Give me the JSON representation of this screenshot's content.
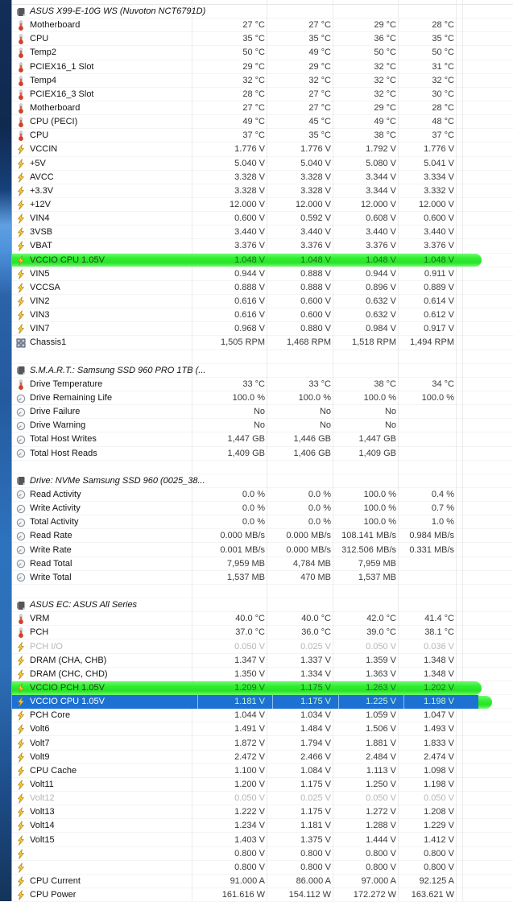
{
  "colors": {
    "highlight_green": "#2FEE2F",
    "selection_blue": "#1D71D3",
    "voltage_icon_yellow": "#FFD23E",
    "thermometer_icon_red": "#E03C22",
    "dim_text_gray": "#B6B6B6"
  },
  "sections": [
    {
      "header": "ASUS X99-E-10G WS (Nuvoton NCT6791D)",
      "header_icon": "chip-icon",
      "rows": [
        {
          "label": "Motherboard",
          "icon": "thermometer-icon",
          "values": [
            "27 °C",
            "27 °C",
            "29 °C",
            "28 °C"
          ]
        },
        {
          "label": "CPU",
          "icon": "thermometer-icon",
          "values": [
            "35 °C",
            "35 °C",
            "36 °C",
            "35 °C"
          ]
        },
        {
          "label": "Temp2",
          "icon": "thermometer-icon",
          "values": [
            "50 °C",
            "49 °C",
            "50 °C",
            "50 °C"
          ]
        },
        {
          "label": "PCIEX16_1 Slot",
          "icon": "thermometer-icon",
          "values": [
            "29 °C",
            "29 °C",
            "32 °C",
            "31 °C"
          ]
        },
        {
          "label": "Temp4",
          "icon": "thermometer-icon",
          "values": [
            "32 °C",
            "32 °C",
            "32 °C",
            "32 °C"
          ]
        },
        {
          "label": "PCIEX16_3 Slot",
          "icon": "thermometer-icon",
          "values": [
            "28 °C",
            "27 °C",
            "32 °C",
            "30 °C"
          ]
        },
        {
          "label": "Motherboard",
          "icon": "thermometer-icon",
          "values": [
            "27 °C",
            "27 °C",
            "29 °C",
            "28 °C"
          ]
        },
        {
          "label": "CPU (PECI)",
          "icon": "thermometer-icon",
          "values": [
            "49 °C",
            "45 °C",
            "49 °C",
            "48 °C"
          ]
        },
        {
          "label": "CPU",
          "icon": "thermometer-icon",
          "values": [
            "37 °C",
            "35 °C",
            "38 °C",
            "37 °C"
          ]
        },
        {
          "label": "VCCIN",
          "icon": "voltage-icon",
          "values": [
            "1.776 V",
            "1.776 V",
            "1.792 V",
            "1.776 V"
          ]
        },
        {
          "label": "+5V",
          "icon": "voltage-icon",
          "values": [
            "5.040 V",
            "5.040 V",
            "5.080 V",
            "5.041 V"
          ]
        },
        {
          "label": "AVCC",
          "icon": "voltage-icon",
          "values": [
            "3.328 V",
            "3.328 V",
            "3.344 V",
            "3.334 V"
          ]
        },
        {
          "label": "+3.3V",
          "icon": "voltage-icon",
          "values": [
            "3.328 V",
            "3.328 V",
            "3.344 V",
            "3.332 V"
          ]
        },
        {
          "label": "+12V",
          "icon": "voltage-icon",
          "values": [
            "12.000 V",
            "12.000 V",
            "12.000 V",
            "12.000 V"
          ]
        },
        {
          "label": "VIN4",
          "icon": "voltage-icon",
          "values": [
            "0.600 V",
            "0.592 V",
            "0.608 V",
            "0.600 V"
          ]
        },
        {
          "label": "3VSB",
          "icon": "voltage-icon",
          "values": [
            "3.440 V",
            "3.440 V",
            "3.440 V",
            "3.440 V"
          ]
        },
        {
          "label": "VBAT",
          "icon": "voltage-icon",
          "values": [
            "3.376 V",
            "3.376 V",
            "3.376 V",
            "3.376 V"
          ]
        },
        {
          "label": "VCCIO CPU 1.05V",
          "icon": "voltage-icon",
          "highlight": "green",
          "values": [
            "1.048 V",
            "1.048 V",
            "1.048 V",
            "1.048 V"
          ]
        },
        {
          "label": "VIN5",
          "icon": "voltage-icon",
          "values": [
            "0.944 V",
            "0.888 V",
            "0.944 V",
            "0.911 V"
          ]
        },
        {
          "label": "VCCSA",
          "icon": "voltage-icon",
          "values": [
            "0.888 V",
            "0.888 V",
            "0.896 V",
            "0.889 V"
          ]
        },
        {
          "label": "VIN2",
          "icon": "voltage-icon",
          "values": [
            "0.616 V",
            "0.600 V",
            "0.632 V",
            "0.614 V"
          ]
        },
        {
          "label": "VIN3",
          "icon": "voltage-icon",
          "values": [
            "0.616 V",
            "0.600 V",
            "0.632 V",
            "0.612 V"
          ]
        },
        {
          "label": "VIN7",
          "icon": "voltage-icon",
          "values": [
            "0.968 V",
            "0.880 V",
            "0.984 V",
            "0.917 V"
          ]
        },
        {
          "label": "Chassis1",
          "icon": "fan-icon",
          "values": [
            "1,505 RPM",
            "1,468 RPM",
            "1,518 RPM",
            "1,494 RPM"
          ]
        }
      ]
    },
    {
      "header": "S.M.A.R.T.: Samsung SSD 960 PRO 1TB (...",
      "header_icon": "chip-icon",
      "rows": [
        {
          "label": "Drive Temperature",
          "icon": "thermometer-icon",
          "values": [
            "33 °C",
            "33 °C",
            "38 °C",
            "34 °C"
          ]
        },
        {
          "label": "Drive Remaining Life",
          "icon": "gauge-icon",
          "values": [
            "100.0 %",
            "100.0 %",
            "100.0 %",
            "100.0 %"
          ]
        },
        {
          "label": "Drive Failure",
          "icon": "gauge-icon",
          "values": [
            "No",
            "No",
            "No",
            ""
          ]
        },
        {
          "label": "Drive Warning",
          "icon": "gauge-icon",
          "values": [
            "No",
            "No",
            "No",
            ""
          ]
        },
        {
          "label": "Total Host Writes",
          "icon": "gauge-icon",
          "values": [
            "1,447 GB",
            "1,446 GB",
            "1,447 GB",
            ""
          ]
        },
        {
          "label": "Total Host Reads",
          "icon": "gauge-icon",
          "values": [
            "1,409 GB",
            "1,406 GB",
            "1,409 GB",
            ""
          ]
        }
      ]
    },
    {
      "header": "Drive: NVMe Samsung SSD 960 (0025_38...",
      "header_icon": "chip-icon",
      "rows": [
        {
          "label": "Read Activity",
          "icon": "gauge-icon",
          "values": [
            "0.0 %",
            "0.0 %",
            "100.0 %",
            "0.4 %"
          ]
        },
        {
          "label": "Write Activity",
          "icon": "gauge-icon",
          "values": [
            "0.0 %",
            "0.0 %",
            "100.0 %",
            "0.7 %"
          ]
        },
        {
          "label": "Total Activity",
          "icon": "gauge-icon",
          "values": [
            "0.0 %",
            "0.0 %",
            "100.0 %",
            "1.0 %"
          ]
        },
        {
          "label": "Read Rate",
          "icon": "gauge-icon",
          "values": [
            "0.000 MB/s",
            "0.000 MB/s",
            "108.141 MB/s",
            "0.984 MB/s"
          ]
        },
        {
          "label": "Write Rate",
          "icon": "gauge-icon",
          "values": [
            "0.001 MB/s",
            "0.000 MB/s",
            "312.506 MB/s",
            "0.331 MB/s"
          ]
        },
        {
          "label": "Read Total",
          "icon": "gauge-icon",
          "values": [
            "7,959 MB",
            "4,784 MB",
            "7,959 MB",
            ""
          ]
        },
        {
          "label": "Write Total",
          "icon": "gauge-icon",
          "values": [
            "1,537 MB",
            "470 MB",
            "1,537 MB",
            ""
          ]
        }
      ]
    },
    {
      "header": "ASUS EC: ASUS All Series",
      "header_icon": "chip-icon",
      "rows": [
        {
          "label": "VRM",
          "icon": "thermometer-icon",
          "values": [
            "40.0 °C",
            "40.0 °C",
            "42.0 °C",
            "41.4 °C"
          ]
        },
        {
          "label": "PCH",
          "icon": "thermometer-icon",
          "values": [
            "37.0 °C",
            "36.0 °C",
            "39.0 °C",
            "38.1 °C"
          ]
        },
        {
          "label": "PCH I/O",
          "icon": "voltage-icon",
          "dim": true,
          "values": [
            "0.050 V",
            "0.025 V",
            "0.050 V",
            "0.036 V"
          ]
        },
        {
          "label": "DRAM (CHA, CHB)",
          "icon": "voltage-icon",
          "values": [
            "1.347 V",
            "1.337 V",
            "1.359 V",
            "1.348 V"
          ]
        },
        {
          "label": "DRAM (CHC, CHD)",
          "icon": "voltage-icon",
          "values": [
            "1.350 V",
            "1.334 V",
            "1.363 V",
            "1.348 V"
          ]
        },
        {
          "label": "VCCIO PCH 1.05V",
          "icon": "voltage-icon",
          "highlight": "green",
          "values": [
            "1.209 V",
            "1.175 V",
            "1.263 V",
            "1.202 V"
          ]
        },
        {
          "label": "VCCIO CPU 1.05V",
          "icon": "voltage-icon",
          "highlight": "selected",
          "values": [
            "1.181 V",
            "1.175 V",
            "1.225 V",
            "1.198 V"
          ]
        },
        {
          "label": "PCH Core",
          "icon": "voltage-icon",
          "values": [
            "1.044 V",
            "1.034 V",
            "1.059 V",
            "1.047 V"
          ]
        },
        {
          "label": "Volt6",
          "icon": "voltage-icon",
          "values": [
            "1.491 V",
            "1.484 V",
            "1.506 V",
            "1.493 V"
          ]
        },
        {
          "label": "Volt7",
          "icon": "voltage-icon",
          "values": [
            "1.872 V",
            "1.794 V",
            "1.881 V",
            "1.833 V"
          ]
        },
        {
          "label": "Volt9",
          "icon": "voltage-icon",
          "values": [
            "2.472 V",
            "2.466 V",
            "2.484 V",
            "2.474 V"
          ]
        },
        {
          "label": "CPU Cache",
          "icon": "voltage-icon",
          "values": [
            "1.100 V",
            "1.084 V",
            "1.113 V",
            "1.098 V"
          ]
        },
        {
          "label": "Volt11",
          "icon": "voltage-icon",
          "values": [
            "1.200 V",
            "1.175 V",
            "1.250 V",
            "1.198 V"
          ]
        },
        {
          "label": "Volt12",
          "icon": "voltage-icon",
          "dim": true,
          "values": [
            "0.050 V",
            "0.025 V",
            "0.050 V",
            "0.050 V"
          ]
        },
        {
          "label": "Volt13",
          "icon": "voltage-icon",
          "values": [
            "1.222 V",
            "1.175 V",
            "1.272 V",
            "1.208 V"
          ]
        },
        {
          "label": "Volt14",
          "icon": "voltage-icon",
          "values": [
            "1.234 V",
            "1.181 V",
            "1.288 V",
            "1.229 V"
          ]
        },
        {
          "label": "Volt15",
          "icon": "voltage-icon",
          "values": [
            "1.403 V",
            "1.375 V",
            "1.444 V",
            "1.412 V"
          ]
        },
        {
          "label": "",
          "icon": "voltage-icon",
          "values": [
            "0.800 V",
            "0.800 V",
            "0.800 V",
            "0.800 V"
          ]
        },
        {
          "label": "",
          "icon": "voltage-icon",
          "values": [
            "0.800 V",
            "0.800 V",
            "0.800 V",
            "0.800 V"
          ]
        },
        {
          "label": "CPU Current",
          "icon": "voltage-icon",
          "values": [
            "91.000 A",
            "86.000 A",
            "97.000 A",
            "92.125 A"
          ]
        },
        {
          "label": "CPU Power",
          "icon": "voltage-icon",
          "values": [
            "161.616 W",
            "154.112 W",
            "172.272 W",
            "163.621 W"
          ]
        }
      ]
    }
  ]
}
